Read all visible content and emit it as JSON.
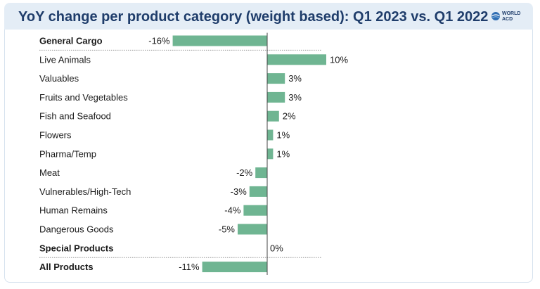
{
  "title": "YoY change per product category (weight based): Q1 2023 vs. Q1 2022",
  "logo": {
    "line1": "WORLD",
    "line2": "ACD",
    "icon": "globe-icon"
  },
  "colors": {
    "bar": "#6fb592",
    "axis": "#444444",
    "separator": "#999999",
    "title": "#1f3d6b"
  },
  "chart_data": {
    "type": "bar",
    "orientation": "horizontal",
    "title": "YoY change per product category (weight based): Q1 2023 vs. Q1 2022",
    "categories": [
      "General Cargo",
      "Live Animals",
      "Valuables",
      "Fruits and Vegetables",
      "Fish and Seafood",
      "Flowers",
      "Pharma/Temp",
      "Meat",
      "Vulnerables/High-Tech",
      "Human Remains",
      "Dangerous Goods",
      "Special Products",
      "All Products"
    ],
    "values": [
      -16,
      10,
      3,
      3,
      2,
      1,
      1,
      -2,
      -3,
      -4,
      -5,
      0,
      -11
    ],
    "value_labels": [
      "-16%",
      "10%",
      "3%",
      "3%",
      "2%",
      "1%",
      "1%",
      "-2%",
      "-3%",
      "-4%",
      "-5%",
      "0%",
      "-11%"
    ],
    "bold_categories": [
      "General Cargo",
      "Special Products",
      "All Products"
    ],
    "unit": "%",
    "xlim": [
      -16,
      10
    ],
    "grid": false,
    "legend": "none"
  }
}
